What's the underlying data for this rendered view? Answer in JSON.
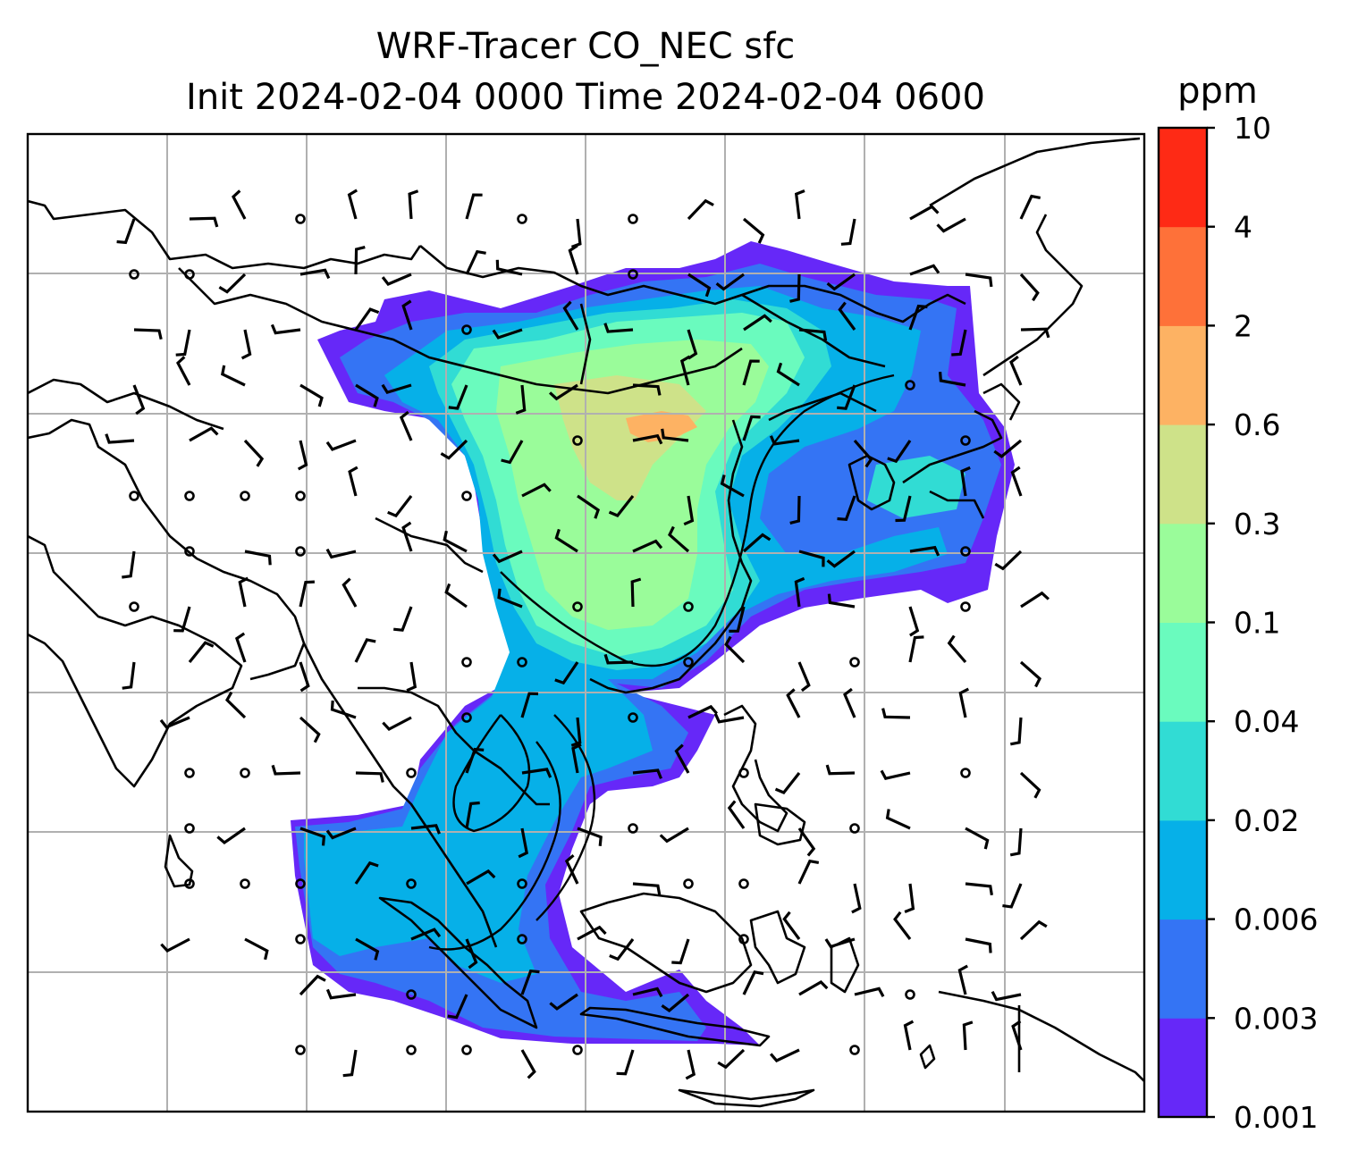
{
  "title_line1": "WRF-Tracer CO_NEC sfc",
  "title_line2": "Init 2024-02-04 0000 Time 2024-02-04 0600",
  "colorbar": {
    "unit": "ppm",
    "ticks": [
      "0.001",
      "0.003",
      "0.006",
      "0.02",
      "0.04",
      "0.1",
      "0.3",
      "0.6",
      "2",
      "4",
      "10"
    ],
    "colors": [
      "#6628f8",
      "#3474f4",
      "#06b0e8",
      "#31dcd4",
      "#6afbbe",
      "#9afc9a",
      "#cee289",
      "#fdb263",
      "#fe7139",
      "#fe2a15"
    ]
  },
  "map": {
    "variable": "CO_NEC tracer concentration",
    "level": "sfc",
    "overlays": [
      "wind barbs",
      "calm-wind circles",
      "coastlines",
      "lat/lon gridlines",
      "contour lines"
    ]
  }
}
